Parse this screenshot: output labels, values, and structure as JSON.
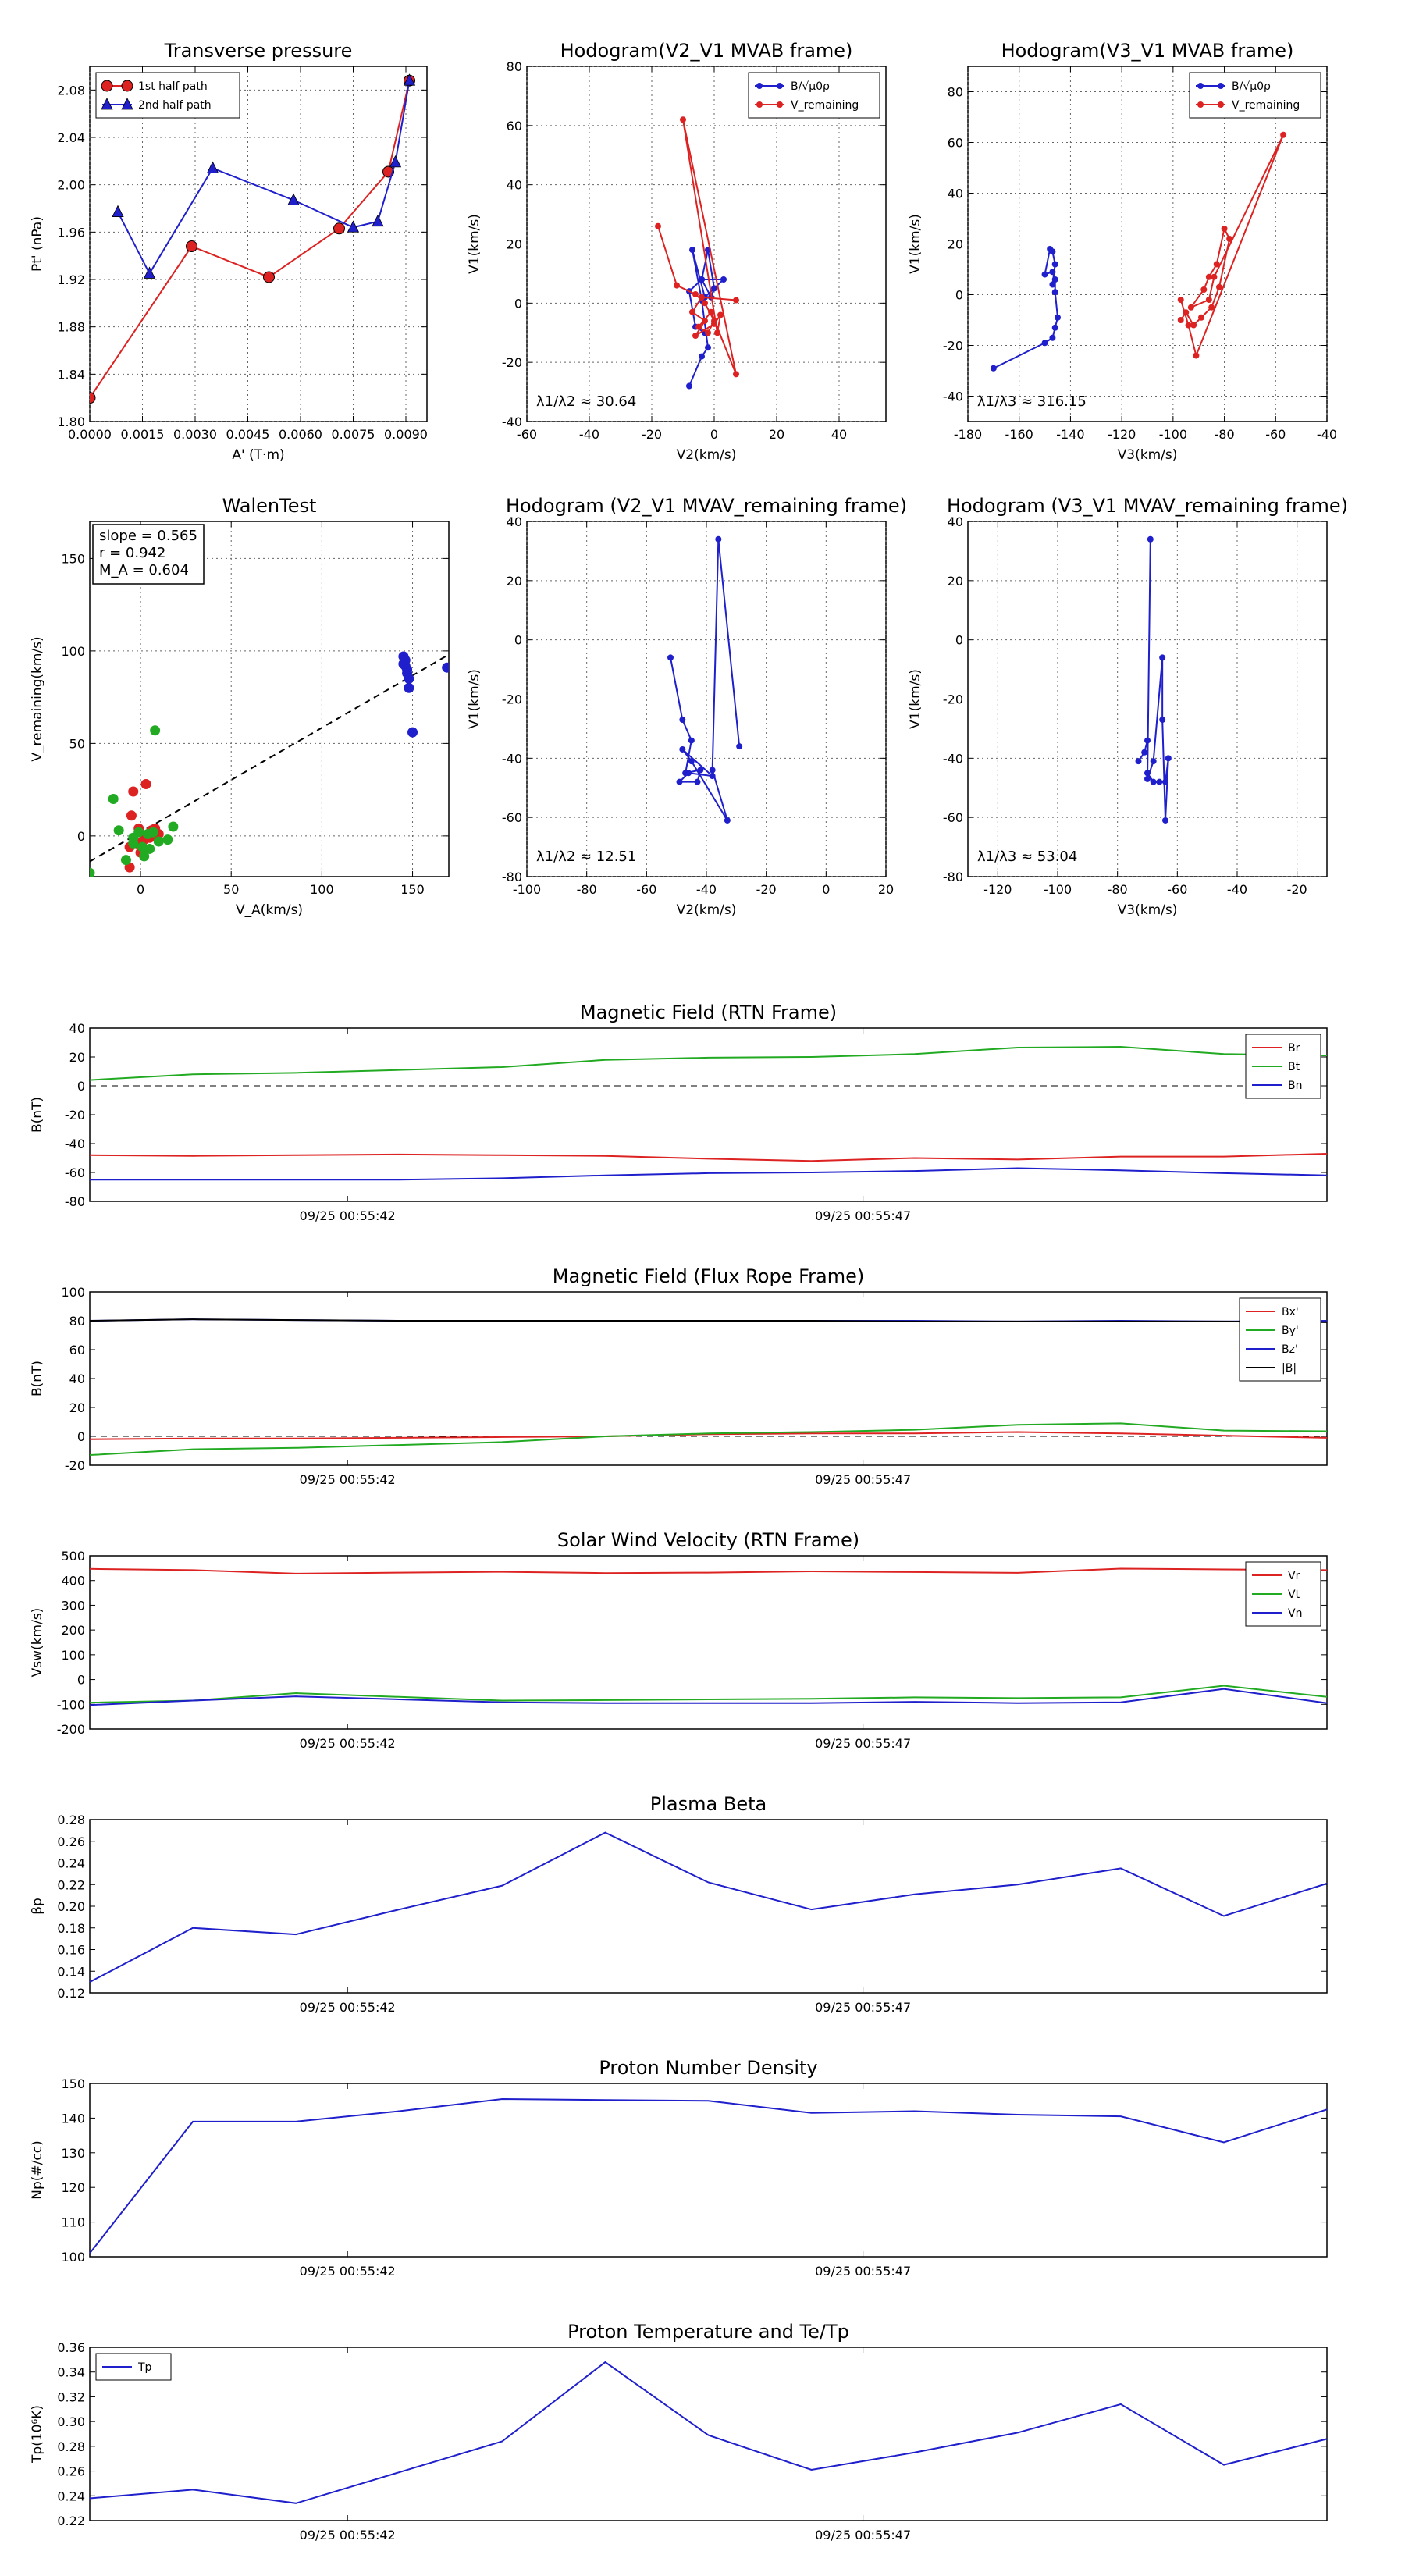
{
  "chart_data": [
    {
      "id": "tp",
      "type": "line",
      "title": "Transverse pressure",
      "xlabel": "A' (T·m)",
      "ylabel": "Pt' (nPa)",
      "xlim": [
        0,
        0.0096
      ],
      "ylim": [
        1.8,
        2.1
      ],
      "xticks": [
        0,
        0.0015,
        0.003,
        0.0045,
        0.006,
        0.0075,
        0.009
      ],
      "xtick_labels": [
        "0.0000",
        "0.0015",
        "0.0030",
        "0.0045",
        "0.0060",
        "0.0075",
        "0.0090"
      ],
      "yticks": [
        1.8,
        1.84,
        1.88,
        1.92,
        1.96,
        2.0,
        2.04,
        2.08
      ],
      "ytick_labels": [
        "1.80",
        "1.84",
        "1.88",
        "1.92",
        "1.96",
        "2.00",
        "2.04",
        "2.08"
      ],
      "legend": "top-left",
      "series": [
        {
          "name": "1st half path",
          "color": "#dd2222",
          "marker": "circle",
          "x": [
            0.0,
            0.0029,
            0.0051,
            0.0071,
            0.0085,
            0.0091
          ],
          "y": [
            1.82,
            1.948,
            1.922,
            1.963,
            2.011,
            2.088
          ]
        },
        {
          "name": "2nd half path",
          "color": "#1f1fcc",
          "marker": "triangle",
          "x": [
            0.0091,
            0.0087,
            0.0082,
            0.0075,
            0.0058,
            0.0035,
            0.0017,
            0.0008
          ],
          "y": [
            2.088,
            2.019,
            1.969,
            1.964,
            1.987,
            2.014,
            1.925,
            1.977
          ]
        }
      ]
    },
    {
      "id": "h1",
      "type": "line",
      "title": "Hodogram(V2_V1 MVAB frame)",
      "xlabel": "V2(km/s)",
      "ylabel": "V1(km/s)",
      "xlim": [
        -60,
        55
      ],
      "ylim": [
        -40,
        80
      ],
      "xticks": [
        -60,
        -40,
        -20,
        0,
        20,
        40
      ],
      "yticks": [
        -40,
        -20,
        0,
        20,
        40,
        60,
        80
      ],
      "legend": "top-right",
      "annotation": "λ1/λ2 ≈ 30.64",
      "annotation_pos": "bottom-left",
      "series": [
        {
          "name": "B/√μ0ρ",
          "color": "#1f1fcc",
          "marker": "dot",
          "x": [
            -3,
            -6,
            -8,
            -4,
            -1,
            0,
            -2,
            -4,
            3,
            -3,
            -7,
            -4,
            -2,
            -4,
            -8
          ],
          "y": [
            -10,
            -8,
            4,
            8,
            2,
            5,
            18,
            8,
            8,
            2,
            18,
            1,
            -15,
            -18,
            -28
          ]
        },
        {
          "name": "V_remaining",
          "color": "#dd2222",
          "marker": "dot",
          "x": [
            -18,
            -12,
            -6,
            -3,
            0,
            -2,
            -5,
            -1,
            7,
            -10,
            1,
            2,
            0,
            -6,
            -3,
            -7,
            -4,
            7
          ],
          "y": [
            26,
            6,
            3,
            0,
            -6,
            -10,
            -8,
            -3,
            -24,
            62,
            -10,
            -4,
            -7,
            -11,
            -6,
            -3,
            2,
            1
          ]
        }
      ]
    },
    {
      "id": "h2",
      "type": "line",
      "title": "Hodogram(V3_V1 MVAB frame)",
      "xlabel": "V3(km/s)",
      "ylabel": "V1(km/s)",
      "xlim": [
        -180,
        -40
      ],
      "ylim": [
        -50,
        90
      ],
      "xticks": [
        -180,
        -160,
        -140,
        -120,
        -100,
        -80,
        -60,
        -40
      ],
      "yticks": [
        -40,
        -20,
        0,
        20,
        40,
        60,
        80
      ],
      "legend": "top-right",
      "annotation": "λ1/λ3 ≈ 316.15",
      "annotation_pos": "bottom-left",
      "series": [
        {
          "name": "B/√μ0ρ",
          "color": "#1f1fcc",
          "marker": "dot",
          "x": [
            -170,
            -150,
            -147,
            -146,
            -145,
            -146,
            -146,
            -147,
            -150,
            -148,
            -147,
            -146,
            -147
          ],
          "y": [
            -29,
            -19,
            -17,
            -13,
            -9,
            1,
            6,
            9,
            8,
            18,
            17,
            12,
            4
          ]
        },
        {
          "name": "V_remaining",
          "color": "#dd2222",
          "marker": "dot",
          "x": [
            -97,
            -95,
            -92,
            -89,
            -85,
            -82,
            -78,
            -80,
            -83,
            -86,
            -88,
            -93,
            -86,
            -84,
            -57,
            -91,
            -94,
            -97
          ],
          "y": [
            -10,
            -7,
            -12,
            -9,
            -5,
            3,
            22,
            26,
            12,
            7,
            2,
            -5,
            -2,
            7,
            63,
            -24,
            -12,
            -2
          ]
        }
      ]
    },
    {
      "id": "walen",
      "type": "scatter",
      "title": "WalenTest",
      "xlabel": "V_A(km/s)",
      "ylabel": "V_remaining(km/s)",
      "xlim": [
        -28,
        170
      ],
      "ylim": [
        -22,
        170
      ],
      "xticks": [
        0,
        50,
        100,
        150
      ],
      "yticks": [
        0,
        50,
        100,
        150
      ],
      "info": [
        "slope = 0.565",
        "r = 0.942",
        "M_A = 0.604"
      ],
      "fit_line": {
        "slope": 0.565,
        "intercept": 2
      },
      "series": [
        {
          "name": "red",
          "color": "#dd2222",
          "x": [
            -6,
            -5,
            3,
            8,
            10,
            -4,
            -1,
            1,
            5,
            -6,
            9,
            6,
            2,
            -2,
            0
          ],
          "y": [
            -17,
            11,
            28,
            4,
            1,
            24,
            4,
            -3,
            -1,
            -6,
            -1,
            3,
            -2,
            -4,
            -9
          ]
        },
        {
          "name": "green",
          "color": "#22aa22",
          "x": [
            -28,
            -15,
            -12,
            -8,
            -4,
            -1,
            2,
            5,
            8,
            15,
            18,
            10,
            -4,
            7,
            1,
            4
          ],
          "y": [
            -20,
            20,
            3,
            -13,
            -4,
            2,
            -11,
            -7,
            57,
            -2,
            5,
            -3,
            -1,
            2,
            -6,
            1
          ]
        },
        {
          "name": "blue",
          "color": "#1f1fcc",
          "x": [
            145,
            146,
            147,
            145,
            148,
            146,
            147,
            148,
            150,
            169
          ],
          "y": [
            97,
            95,
            88,
            93,
            80,
            92,
            90,
            85,
            56,
            91
          ]
        }
      ]
    },
    {
      "id": "h3",
      "type": "line",
      "title": "Hodogram (V2_V1 MVAV_remaining frame)",
      "xlabel": "V2(km/s)",
      "ylabel": "V1(km/s)",
      "xlim": [
        -100,
        20
      ],
      "ylim": [
        -80,
        40
      ],
      "xticks": [
        -100,
        -80,
        -60,
        -40,
        -20,
        0,
        20
      ],
      "yticks": [
        -80,
        -60,
        -40,
        -20,
        0,
        20,
        40
      ],
      "annotation": "λ1/λ2 ≈ 12.51",
      "annotation_pos": "bottom-left",
      "series": [
        {
          "name": "blue",
          "color": "#1f1fcc",
          "marker": "dot",
          "x": [
            -52,
            -48,
            -45,
            -47,
            -42,
            -43,
            -49,
            -46,
            -38,
            -48,
            -45,
            -33,
            -38,
            -36,
            -29
          ],
          "y": [
            -6,
            -27,
            -34,
            -45,
            -44,
            -48,
            -48,
            -45,
            -46,
            -37,
            -41,
            -61,
            -44,
            34,
            -36
          ]
        }
      ]
    },
    {
      "id": "h4",
      "type": "line",
      "title": "Hodogram (V3_V1 MVAV_remaining frame)",
      "xlabel": "V3(km/s)",
      "ylabel": "V1(km/s)",
      "xlim": [
        -130,
        -10
      ],
      "ylim": [
        -80,
        40
      ],
      "xticks": [
        -120,
        -100,
        -80,
        -60,
        -40,
        -20
      ],
      "yticks": [
        -80,
        -60,
        -40,
        -20,
        0,
        20,
        40
      ],
      "annotation": "λ1/λ3 ≈ 53.04",
      "annotation_pos": "bottom-left",
      "series": [
        {
          "name": "blue",
          "color": "#1f1fcc",
          "marker": "dot",
          "x": [
            -73,
            -71,
            -70,
            -70,
            -68,
            -66,
            -64,
            -63,
            -64,
            -65,
            -65,
            -68,
            -70,
            -69
          ],
          "y": [
            -41,
            -38,
            -34,
            -45,
            -48,
            -48,
            -48,
            -40,
            -61,
            -27,
            -6,
            -41,
            -47,
            34
          ]
        }
      ]
    },
    {
      "id": "bfield",
      "type": "line",
      "title": "Magnetic Field (RTN Frame)",
      "ylabel": "B(nT)",
      "ylim": [
        -80,
        40
      ],
      "yticks": [
        -80,
        -60,
        -40,
        -20,
        0,
        20,
        40
      ],
      "xtick_labels": [
        "09/25 00:55:42",
        "09/25 00:55:47"
      ],
      "xtick_index": [
        2.5,
        7.5
      ],
      "zero_line": true,
      "legend": "top-right",
      "series": [
        {
          "name": "Br",
          "color": "#dd2222",
          "values": [
            -48,
            -48.5,
            -48,
            -47.5,
            -48,
            -48.5,
            -50.5,
            -52,
            -50,
            -51,
            -49,
            -49,
            -47
          ]
        },
        {
          "name": "Bt",
          "color": "#22aa22",
          "values": [
            4,
            8,
            9,
            11,
            13,
            18,
            19.5,
            20,
            22,
            26.5,
            27,
            22,
            21
          ]
        },
        {
          "name": "Bn",
          "color": "#1f1fcc",
          "values": [
            -65,
            -65,
            -65,
            -65,
            -64,
            -62,
            -60.5,
            -60,
            -59,
            -57,
            -58.5,
            -60.5,
            -62
          ]
        }
      ]
    },
    {
      "id": "bfr",
      "type": "line",
      "title": "Magnetic Field (Flux Rope Frame)",
      "ylabel": "B(nT)",
      "ylim": [
        -20,
        100
      ],
      "yticks": [
        -20,
        0,
        20,
        40,
        60,
        80,
        100
      ],
      "xtick_labels": [
        "09/25 00:55:42",
        "09/25 00:55:47"
      ],
      "xtick_index": [
        2.5,
        7.5
      ],
      "zero_line": true,
      "legend": "top-right",
      "series": [
        {
          "name": "Bx'",
          "color": "#dd2222",
          "values": [
            -2,
            -1.5,
            -1.5,
            -1,
            -0.5,
            0,
            1.5,
            2,
            2,
            3,
            2,
            0.5,
            -1
          ]
        },
        {
          "name": "By'",
          "color": "#22aa22",
          "values": [
            -13,
            -9,
            -8,
            -6,
            -4,
            0,
            2,
            3,
            4.5,
            8,
            9,
            4,
            3.5
          ]
        },
        {
          "name": "Bz'",
          "color": "#1f1fcc",
          "values": [
            80,
            81,
            80.5,
            80,
            80,
            80,
            80,
            80,
            80,
            79.5,
            80,
            79.5,
            80
          ]
        },
        {
          "name": "|B|",
          "color": "#000000",
          "values": [
            80,
            81,
            80.5,
            80,
            80,
            80,
            80,
            80,
            79.5,
            79.5,
            79.5,
            79.5,
            79
          ]
        }
      ]
    },
    {
      "id": "vel",
      "type": "line",
      "title": "Solar Wind Velocity (RTN Frame)",
      "ylabel": "Vsw(km/s)",
      "ylim": [
        -200,
        500
      ],
      "yticks": [
        -200,
        -100,
        0,
        100,
        200,
        300,
        400,
        500
      ],
      "xtick_labels": [
        "09/25 00:55:42",
        "09/25 00:55:47"
      ],
      "xtick_index": [
        2.5,
        7.5
      ],
      "legend": "top-right",
      "series": [
        {
          "name": "Vr",
          "color": "#dd2222",
          "values": [
            447,
            442,
            428,
            432,
            435,
            430,
            432,
            437,
            434,
            431,
            448,
            445,
            442
          ]
        },
        {
          "name": "Vt",
          "color": "#22aa22",
          "values": [
            -93,
            -85,
            -55,
            -70,
            -85,
            -83,
            -80,
            -78,
            -72,
            -75,
            -72,
            -25,
            -70
          ]
        },
        {
          "name": "Vn",
          "color": "#1f1fcc",
          "values": [
            -103,
            -85,
            -68,
            -80,
            -92,
            -95,
            -95,
            -95,
            -90,
            -95,
            -92,
            -38,
            -95
          ]
        }
      ]
    },
    {
      "id": "beta",
      "type": "line",
      "title": "Plasma Beta",
      "ylabel": "βp",
      "ylim": [
        0.12,
        0.28
      ],
      "yticks": [
        0.12,
        0.14,
        0.16,
        0.18,
        0.2,
        0.22,
        0.24,
        0.26,
        0.28
      ],
      "ytick_labels": [
        "0.12",
        "0.14",
        "0.16",
        "0.18",
        "0.20",
        "0.22",
        "0.24",
        "0.26",
        "0.28"
      ],
      "xtick_labels": [
        "09/25 00:55:42",
        "09/25 00:55:47"
      ],
      "xtick_index": [
        2.5,
        7.5
      ],
      "series": [
        {
          "name": "beta",
          "color": "#1f1fcc",
          "values": [
            0.13,
            0.18,
            0.174,
            0.197,
            0.219,
            0.268,
            0.222,
            0.197,
            0.211,
            0.22,
            0.235,
            0.191,
            0.221
          ]
        }
      ]
    },
    {
      "id": "np",
      "type": "line",
      "title": "Proton Number Density",
      "ylabel": "Np(#/cc)",
      "ylim": [
        100,
        150
      ],
      "yticks": [
        100,
        110,
        120,
        130,
        140,
        150
      ],
      "xtick_labels": [
        "09/25 00:55:42",
        "09/25 00:55:47"
      ],
      "xtick_index": [
        2.5,
        7.5
      ],
      "series": [
        {
          "name": "Np",
          "color": "#1f1fcc",
          "values": [
            101,
            139,
            139,
            142,
            145.5,
            145.2,
            145,
            141.5,
            142,
            141,
            140.5,
            133,
            142.5
          ]
        }
      ]
    },
    {
      "id": "tp_temp",
      "type": "line",
      "title": "Proton Temperature and Te/Tp",
      "ylabel": "Tp(10⁶K)",
      "ylim": [
        0.22,
        0.36
      ],
      "yticks": [
        0.22,
        0.24,
        0.26,
        0.28,
        0.3,
        0.32,
        0.34,
        0.36
      ],
      "ytick_labels": [
        "0.22",
        "0.24",
        "0.26",
        "0.28",
        "0.30",
        "0.32",
        "0.34",
        "0.36"
      ],
      "xtick_labels": [
        "09/25 00:55:42",
        "09/25 00:55:47"
      ],
      "xtick_index": [
        2.5,
        7.5
      ],
      "legend": "top-left",
      "series": [
        {
          "name": "Tp",
          "color": "#1f1fcc",
          "values": [
            0.238,
            0.245,
            0.234,
            0.259,
            0.284,
            0.348,
            0.289,
            0.261,
            0.275,
            0.291,
            0.314,
            0.265,
            0.286
          ]
        }
      ]
    }
  ]
}
